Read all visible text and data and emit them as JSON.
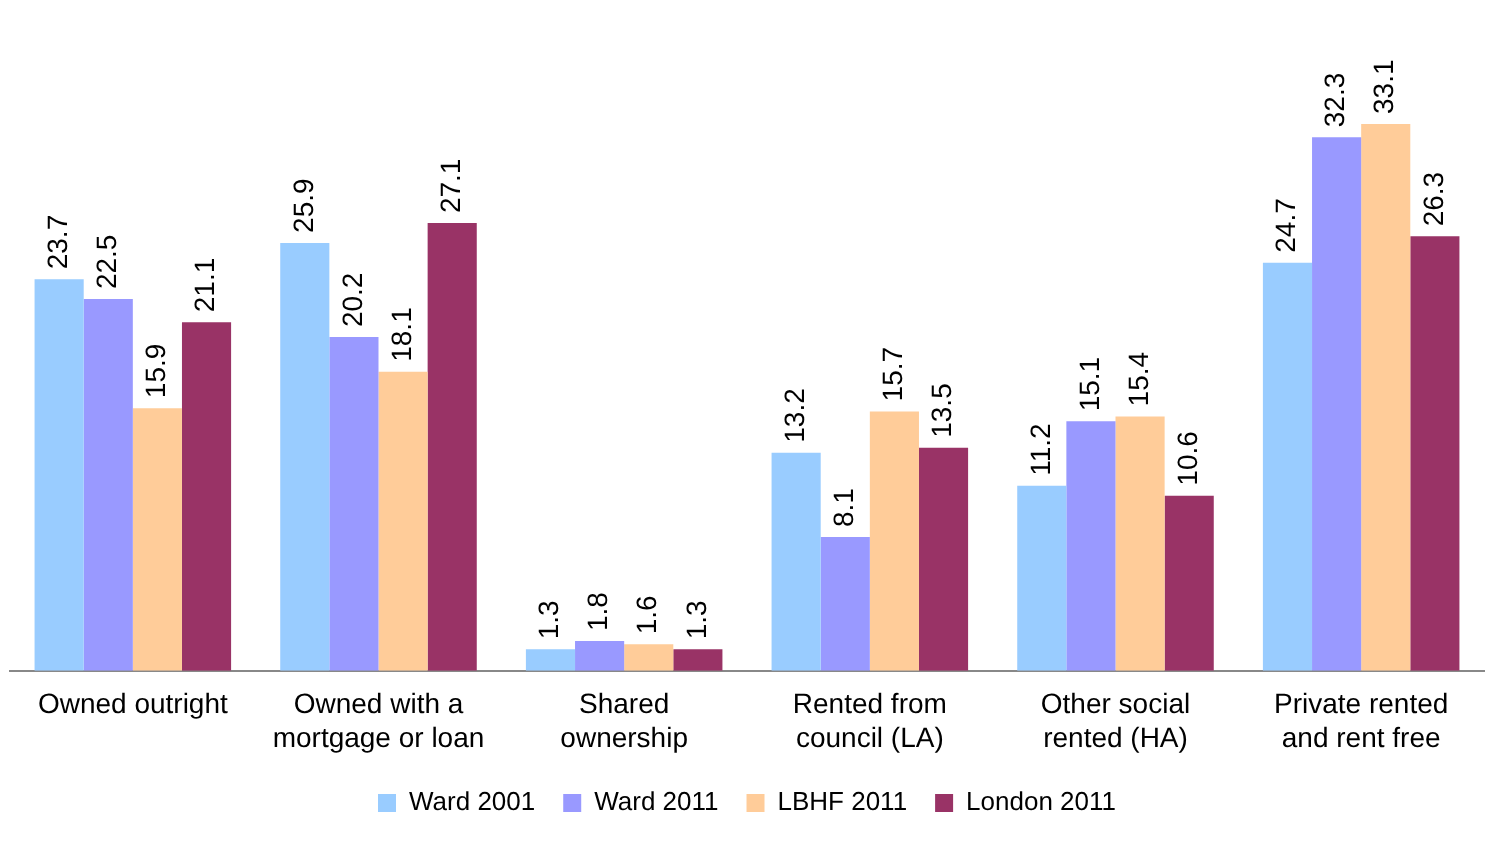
{
  "chart_data": {
    "type": "bar",
    "categories": [
      "Owned outright",
      "Owned with a\nmortgage or loan",
      "Shared\nownership",
      "Rented from\ncouncil (LA)",
      "Other social\nrented (HA)",
      "Private rented\nand rent free"
    ],
    "series": [
      {
        "name": "Ward 2001",
        "color": "#99ccff",
        "values": [
          23.7,
          25.9,
          1.3,
          13.2,
          11.2,
          24.7
        ]
      },
      {
        "name": "Ward 2011",
        "color": "#9999ff",
        "values": [
          22.5,
          20.2,
          1.8,
          8.1,
          15.1,
          32.3
        ]
      },
      {
        "name": "LBHF 2011",
        "color": "#ffcc99",
        "values": [
          15.9,
          18.1,
          1.6,
          15.7,
          15.4,
          33.1
        ]
      },
      {
        "name": "London 2011",
        "color": "#993366",
        "values": [
          21.1,
          27.1,
          1.3,
          13.5,
          10.6,
          26.3
        ]
      }
    ],
    "data_labels": true,
    "legend": "bottom",
    "grid": false
  }
}
